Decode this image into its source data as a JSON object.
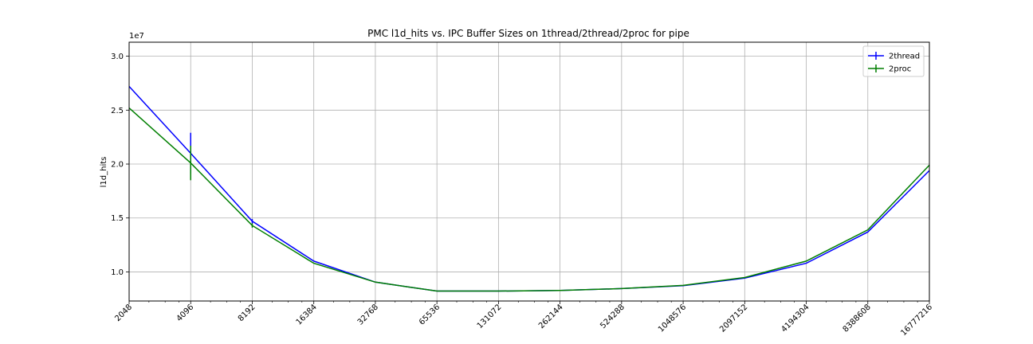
{
  "chart_data": {
    "type": "line",
    "title": "PMC l1d_hits vs. IPC Buffer Sizes on 1thread/2thread/2proc for pipe",
    "xlabel": "",
    "ylabel": "l1d_hits",
    "y_offset_label": "1e7",
    "x_scale": "log2",
    "x": [
      2048,
      4096,
      8192,
      16384,
      32768,
      65536,
      131072,
      262144,
      524288,
      1048576,
      2097152,
      4194304,
      8388608,
      16777216
    ],
    "x_tick_labels": [
      "2048",
      "4096",
      "8192",
      "16384",
      "32768",
      "65536",
      "131072",
      "262144",
      "524288",
      "1048576",
      "2097152",
      "4194304",
      "8388608",
      "16777216"
    ],
    "y_ticks": [
      1.0,
      1.5,
      2.0,
      2.5,
      3.0
    ],
    "y_tick_labels": [
      "1.0",
      "1.5",
      "2.0",
      "2.5",
      "3.0"
    ],
    "ylim": [
      0.73,
      3.13
    ],
    "grid": true,
    "legend_position": "top-right",
    "series": [
      {
        "name": "2thread",
        "color": "#0000ff",
        "values": [
          2.72,
          2.1,
          1.47,
          1.1,
          0.905,
          0.822,
          0.822,
          0.828,
          0.845,
          0.872,
          0.942,
          1.08,
          1.37,
          1.94
        ],
        "errors": [
          0,
          0.19,
          0.02,
          0,
          0,
          0,
          0,
          0,
          0,
          0,
          0,
          0,
          0,
          0
        ]
      },
      {
        "name": "2proc",
        "color": "#007f00",
        "values": [
          2.52,
          2.01,
          1.43,
          1.08,
          0.905,
          0.822,
          0.822,
          0.828,
          0.845,
          0.875,
          0.948,
          1.1,
          1.39,
          1.99
        ],
        "errors": [
          0,
          0.16,
          0.02,
          0,
          0,
          0,
          0,
          0,
          0,
          0,
          0,
          0,
          0,
          0
        ]
      }
    ]
  }
}
